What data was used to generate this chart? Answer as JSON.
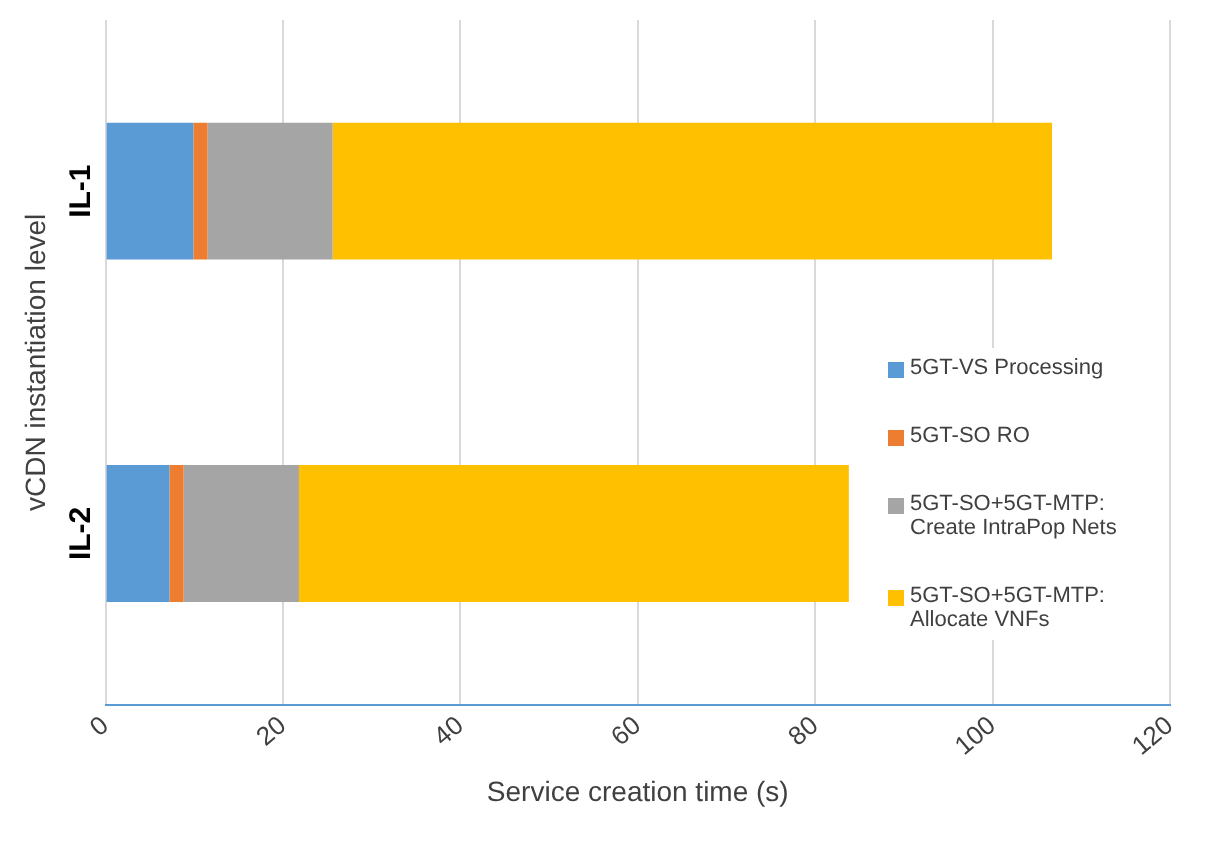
{
  "chart_data": {
    "type": "bar",
    "orientation": "horizontal",
    "stacked": true,
    "xlabel": "Service creation time (s)",
    "ylabel": "vCDN instantiation level",
    "categories": [
      "IL-1",
      "IL-2"
    ],
    "series": [
      {
        "name": "5GT-VS Processing",
        "color": "#5b9bd5",
        "values": [
          9.9,
          7.2
        ]
      },
      {
        "name": "5GT-SO RO",
        "color": "#ed7d31",
        "values": [
          1.6,
          1.6
        ]
      },
      {
        "name": "5GT-SO+5GT-MTP: Create IntraPop Nets",
        "color": "#a5a5a5",
        "values": [
          14.1,
          13.0
        ]
      },
      {
        "name": "5GT-SO+5GT-MTP: Allocate VNFs",
        "color": "#ffc000",
        "values": [
          81.1,
          62.0
        ]
      }
    ],
    "xlim": [
      0,
      120
    ],
    "xticks": [
      0,
      20,
      40,
      60,
      80,
      100,
      120
    ],
    "grid": "x",
    "legend": "right"
  }
}
